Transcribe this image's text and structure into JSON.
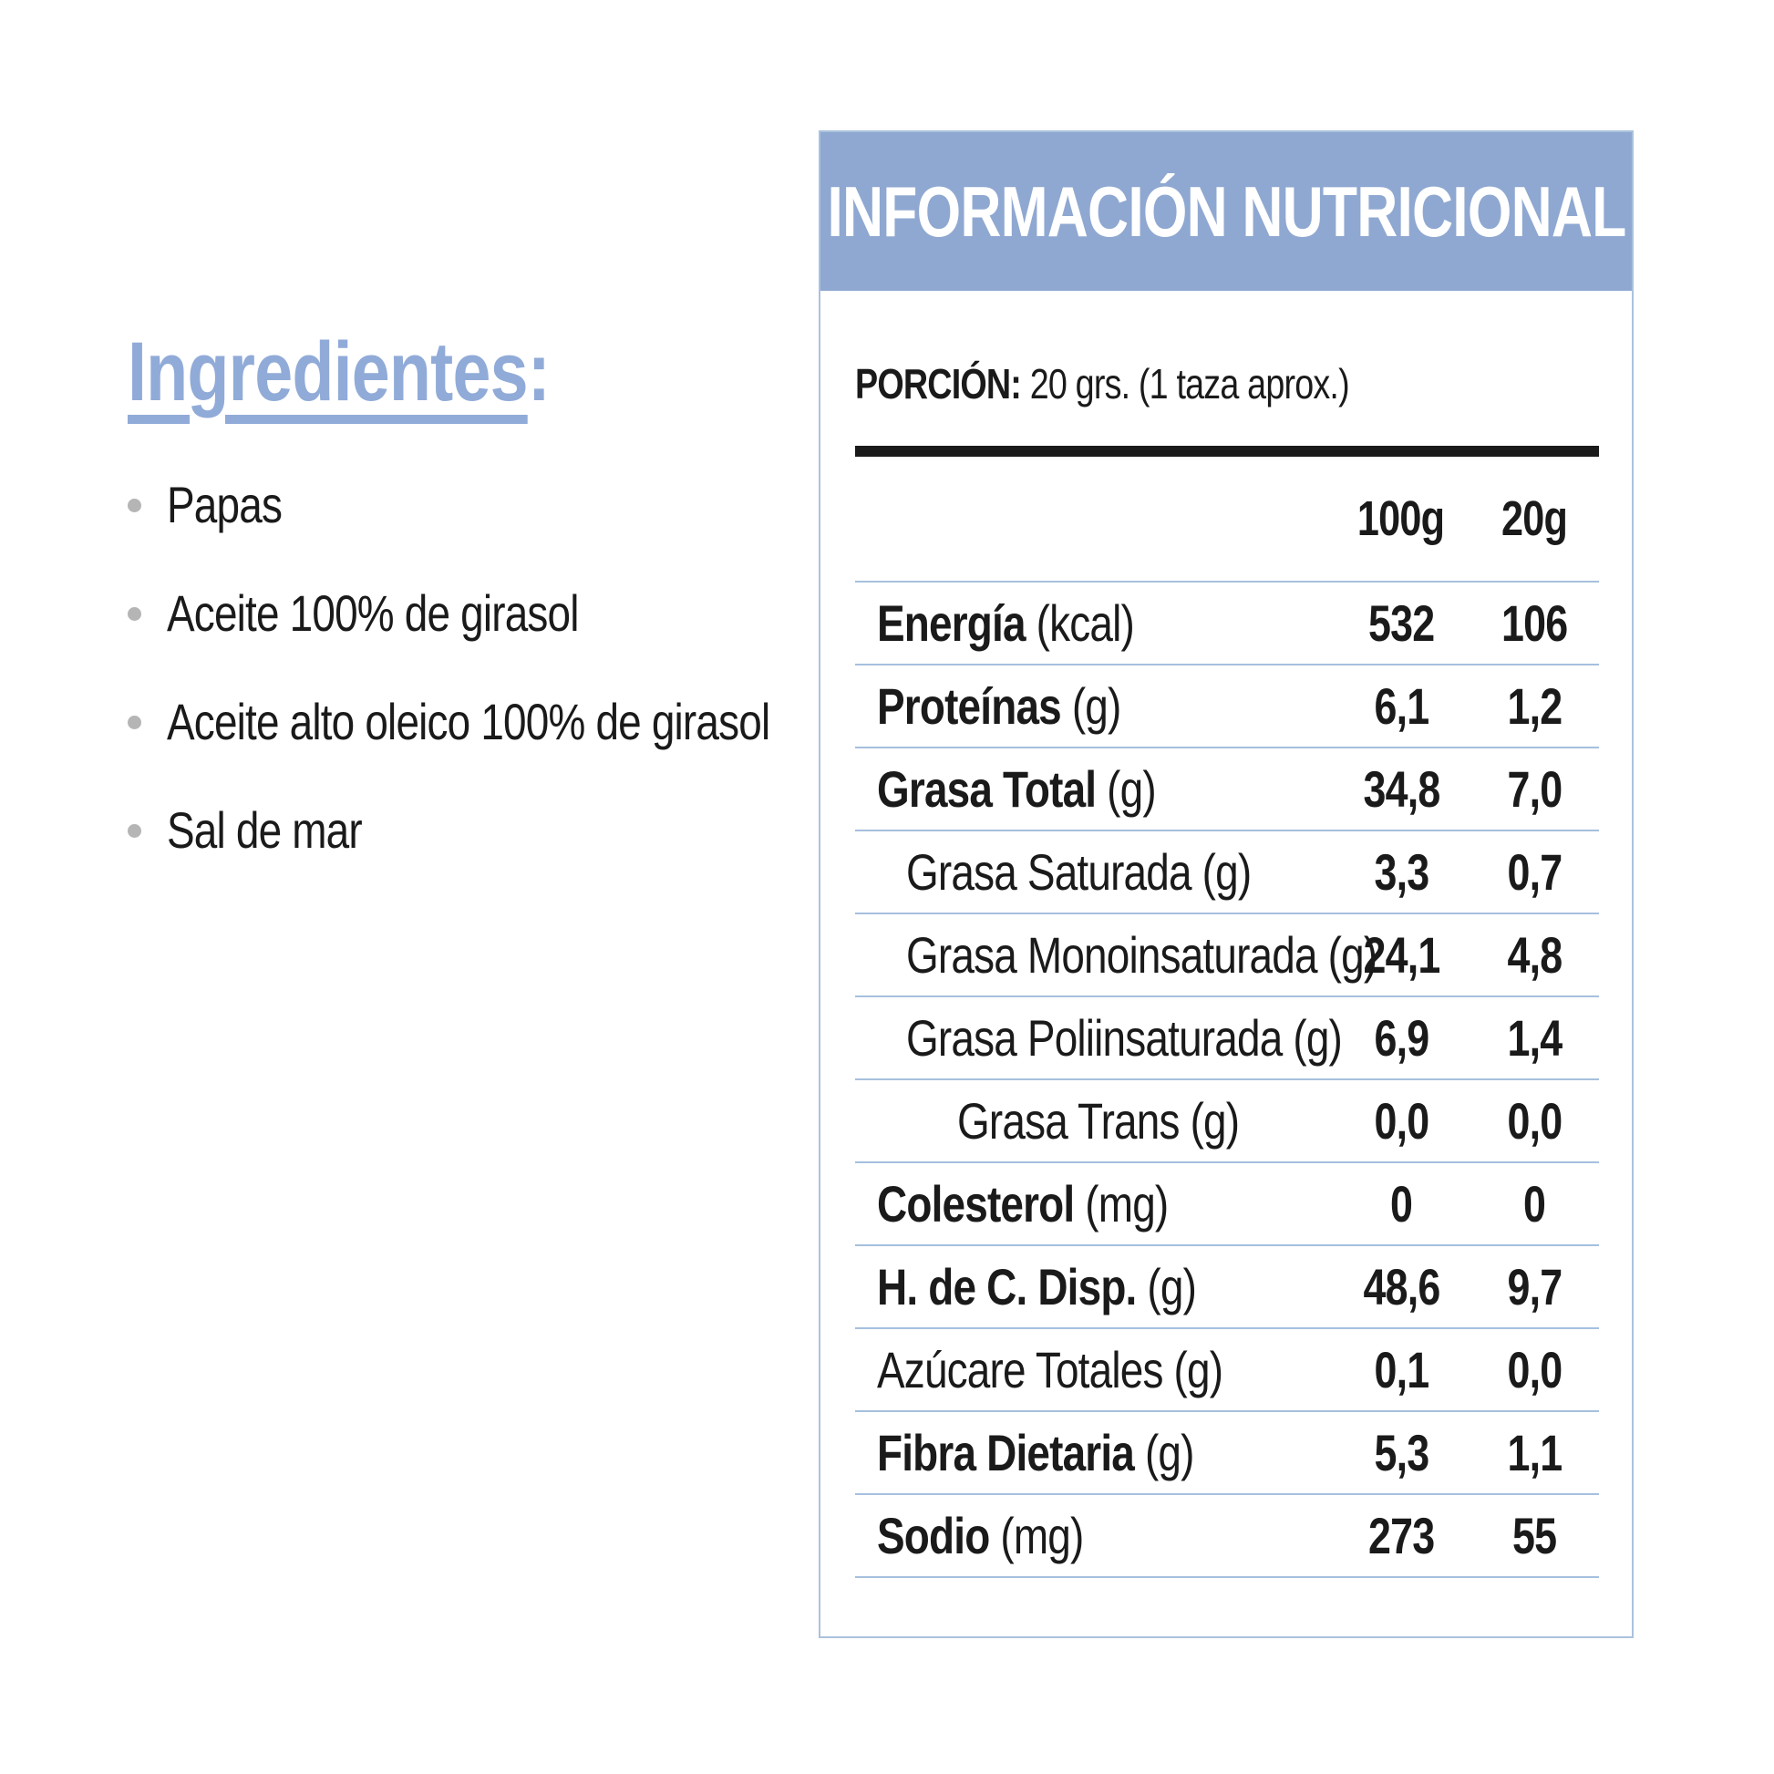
{
  "colors": {
    "band": "#8FA8D1",
    "heading": "#91ABD8",
    "separator": "#A6C0DE",
    "border": "#ABC2DD",
    "text": "#1A1A1A",
    "bullet": "#B5B5B5"
  },
  "ingredients": {
    "title": "Ingredientes",
    "title_colon": ":",
    "items": [
      "Papas",
      "Aceite 100% de girasol",
      "Aceite alto oleico 100% de girasol",
      "Sal de mar"
    ]
  },
  "panel": {
    "title": "INFORMACIÓN NUTRICIONAL",
    "portion_label": "PORCIÓN:",
    "portion_value": "20 grs. (1 taza aprox.)",
    "columns": [
      "100g",
      "20g"
    ],
    "rows": [
      {
        "label": "Energía",
        "unit": "(kcal)",
        "v100": "532",
        "v20": "106",
        "bold": true,
        "indent": 0
      },
      {
        "label": "Proteínas",
        "unit": "(g)",
        "v100": "6,1",
        "v20": "1,2",
        "bold": true,
        "indent": 0
      },
      {
        "label": "Grasa Total",
        "unit": "(g)",
        "v100": "34,8",
        "v20": "7,0",
        "bold": true,
        "indent": 0
      },
      {
        "label": "Grasa Saturada",
        "unit": "(g)",
        "v100": "3,3",
        "v20": "0,7",
        "bold": false,
        "indent": 1
      },
      {
        "label": "Grasa Monoinsaturada",
        "unit": "(g)",
        "v100": "24,1",
        "v20": "4,8",
        "bold": false,
        "indent": 1
      },
      {
        "label": "Grasa Poliinsaturada",
        "unit": "(g)",
        "v100": "6,9",
        "v20": "1,4",
        "bold": false,
        "indent": 1
      },
      {
        "label": "Grasa Trans",
        "unit": "(g)",
        "v100": "0,0",
        "v20": "0,0",
        "bold": false,
        "indent": 2
      },
      {
        "label": "Colesterol",
        "unit": "(mg)",
        "v100": "0",
        "v20": "0",
        "bold": true,
        "indent": 0
      },
      {
        "label": "H. de C. Disp.",
        "unit": "(g)",
        "v100": "48,6",
        "v20": "9,7",
        "bold": true,
        "indent": 0
      },
      {
        "label": "Azúcare Totales",
        "unit": "(g)",
        "v100": "0,1",
        "v20": "0,0",
        "bold": false,
        "indent": 0
      },
      {
        "label": "Fibra Dietaria",
        "unit": "(g)",
        "v100": "5,3",
        "v20": "1,1",
        "bold": true,
        "indent": 0
      },
      {
        "label": "Sodio",
        "unit": "(mg)",
        "v100": "273",
        "v20": "55",
        "bold": true,
        "indent": 0
      }
    ]
  }
}
